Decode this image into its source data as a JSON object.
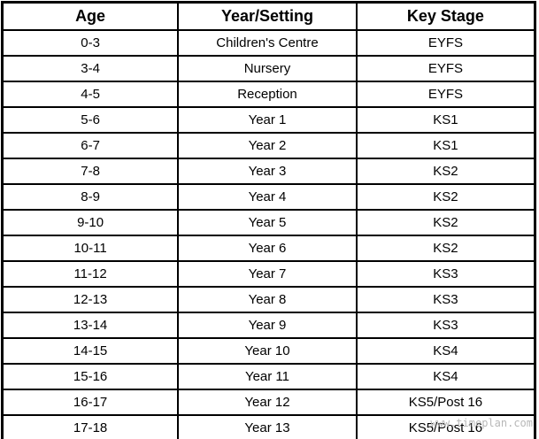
{
  "table": {
    "headers": [
      "Age",
      "Year/Setting",
      "Key Stage"
    ],
    "rows": [
      {
        "age": "0-3",
        "year_setting": "Children's Centre",
        "key_stage": "EYFS"
      },
      {
        "age": "3-4",
        "year_setting": "Nursery",
        "key_stage": "EYFS"
      },
      {
        "age": "4-5",
        "year_setting": "Reception",
        "key_stage": "EYFS"
      },
      {
        "age": "5-6",
        "year_setting": "Year 1",
        "key_stage": "KS1"
      },
      {
        "age": "6-7",
        "year_setting": "Year 2",
        "key_stage": "KS1"
      },
      {
        "age": "7-8",
        "year_setting": "Year 3",
        "key_stage": "KS2"
      },
      {
        "age": "8-9",
        "year_setting": "Year 4",
        "key_stage": "KS2"
      },
      {
        "age": "9-10",
        "year_setting": "Year 5",
        "key_stage": "KS2"
      },
      {
        "age": "10-11",
        "year_setting": "Year 6",
        "key_stage": "KS2"
      },
      {
        "age": "11-12",
        "year_setting": "Year 7",
        "key_stage": "KS3"
      },
      {
        "age": "12-13",
        "year_setting": "Year 8",
        "key_stage": "KS3"
      },
      {
        "age": "13-14",
        "year_setting": "Year 9",
        "key_stage": "KS3"
      },
      {
        "age": "14-15",
        "year_setting": "Year 10",
        "key_stage": "KS4"
      },
      {
        "age": "15-16",
        "year_setting": "Year 11",
        "key_stage": "KS4"
      },
      {
        "age": "16-17",
        "year_setting": "Year 12",
        "key_stage": "KS5/Post 16"
      },
      {
        "age": "17-18",
        "year_setting": "Year 13",
        "key_stage": "KS5/Post 16"
      }
    ]
  },
  "watermark": {
    "text": "www.timeplan.com",
    "color": "#b8b8b8"
  },
  "colors": {
    "border": "#000000",
    "background": "#ffffff",
    "text": "#000000"
  }
}
